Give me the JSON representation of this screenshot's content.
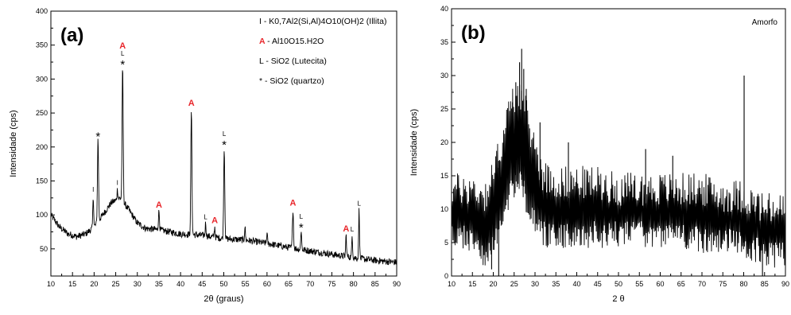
{
  "colors": {
    "ink": "#000000",
    "mineral_a": "#e8262b",
    "background": "#ffffff"
  },
  "chart_data": [
    {
      "panel_label": "(a)",
      "type": "line",
      "xlabel": "2θ (graus)",
      "ylabel": "Intensidade (cps)",
      "xlim": [
        10,
        90
      ],
      "ylim": [
        10,
        400
      ],
      "xticks": [
        10,
        15,
        20,
        25,
        30,
        35,
        40,
        45,
        50,
        55,
        60,
        65,
        70,
        75,
        80,
        85,
        90
      ],
      "yticks": [
        50,
        100,
        150,
        200,
        250,
        300,
        350,
        400
      ],
      "grid": false,
      "legend_position": "top-right",
      "legend": [
        {
          "symbol": "I",
          "text": "- K0,7Al2(Si,Al)4O10(OH)2 (Illita)"
        },
        {
          "symbol": "A",
          "text": "- Al10O15.H2O"
        },
        {
          "symbol": "L",
          "text": "- SiO2 (Lutecita)"
        },
        {
          "symbol": "*",
          "text": "- SiO2 (quartzo)"
        }
      ],
      "baseline": [
        [
          10,
          100
        ],
        [
          12,
          82
        ],
        [
          14,
          72
        ],
        [
          16,
          68
        ],
        [
          18,
          72
        ],
        [
          20,
          82
        ],
        [
          22,
          100
        ],
        [
          24,
          118
        ],
        [
          26,
          125
        ],
        [
          28,
          108
        ],
        [
          30,
          88
        ],
        [
          32,
          80
        ],
        [
          35,
          78
        ],
        [
          40,
          72
        ],
        [
          45,
          70
        ],
        [
          50,
          65
        ],
        [
          55,
          63
        ],
        [
          60,
          58
        ],
        [
          65,
          52
        ],
        [
          70,
          47
        ],
        [
          75,
          42
        ],
        [
          80,
          37
        ],
        [
          85,
          33
        ],
        [
          90,
          30
        ]
      ],
      "peaks": [
        {
          "x": 20.9,
          "y": 212,
          "width": 0.5,
          "markers": [
            "*"
          ]
        },
        {
          "x": 19.8,
          "y": 128,
          "width": 0.4,
          "markers": [
            "I"
          ]
        },
        {
          "x": 25.4,
          "y": 138,
          "width": 0.4,
          "markers": [
            "I"
          ]
        },
        {
          "x": 26.6,
          "y": 318,
          "width": 0.5,
          "markers": [
            "A",
            "L",
            "*"
          ]
        },
        {
          "x": 35.0,
          "y": 105,
          "width": 0.5,
          "markers": [
            "A"
          ]
        },
        {
          "x": 42.5,
          "y": 255,
          "width": 0.5,
          "markers": [
            "A"
          ]
        },
        {
          "x": 45.8,
          "y": 88,
          "width": 0.4,
          "markers": [
            "L"
          ]
        },
        {
          "x": 47.9,
          "y": 82,
          "width": 0.4,
          "markers": [
            "A"
          ]
        },
        {
          "x": 50.1,
          "y": 200,
          "width": 0.5,
          "markers": [
            "L",
            "*"
          ]
        },
        {
          "x": 54.9,
          "y": 82,
          "width": 0.4,
          "markers": []
        },
        {
          "x": 60.0,
          "y": 72,
          "width": 0.4,
          "markers": []
        },
        {
          "x": 66.0,
          "y": 108,
          "width": 0.5,
          "markers": [
            "A"
          ]
        },
        {
          "x": 67.9,
          "y": 78,
          "width": 0.4,
          "markers": [
            "L",
            "*"
          ]
        },
        {
          "x": 78.3,
          "y": 70,
          "width": 0.4,
          "markers": [
            "A"
          ]
        },
        {
          "x": 79.7,
          "y": 70,
          "width": 0.4,
          "markers": [
            "L"
          ]
        },
        {
          "x": 81.3,
          "y": 108,
          "width": 0.4,
          "markers": [
            "L"
          ]
        }
      ]
    },
    {
      "panel_label": "(b)",
      "type": "line",
      "annotation": "Amorfo",
      "xlabel": "2 θ",
      "ylabel": "Intensidade (cps)",
      "xlim": [
        10,
        90
      ],
      "ylim": [
        0,
        40
      ],
      "xticks": [
        10,
        15,
        20,
        25,
        30,
        35,
        40,
        45,
        50,
        55,
        60,
        65,
        70,
        75,
        80,
        85,
        90
      ],
      "yticks": [
        0,
        5,
        10,
        15,
        20,
        25,
        30,
        35,
        40
      ],
      "grid": false,
      "envelope": [
        [
          10,
          12,
          7
        ],
        [
          15,
          12,
          6
        ],
        [
          18,
          11,
          4
        ],
        [
          20,
          14,
          5
        ],
        [
          22,
          19,
          9
        ],
        [
          24,
          24,
          13
        ],
        [
          26,
          27,
          16
        ],
        [
          28,
          23,
          12
        ],
        [
          30,
          18,
          9
        ],
        [
          32,
          14,
          7
        ],
        [
          35,
          13,
          7
        ],
        [
          40,
          13,
          7
        ],
        [
          45,
          13,
          7
        ],
        [
          50,
          12,
          7
        ],
        [
          55,
          12,
          7
        ],
        [
          60,
          12,
          7
        ],
        [
          65,
          12,
          7
        ],
        [
          70,
          12,
          6
        ],
        [
          75,
          11,
          6
        ],
        [
          78,
          11,
          6
        ],
        [
          80,
          11,
          5
        ],
        [
          82,
          10,
          5
        ],
        [
          85,
          9,
          4
        ],
        [
          90,
          9,
          4
        ]
      ],
      "spikes": [
        [
          26.8,
          34
        ],
        [
          26.3,
          32
        ],
        [
          27.3,
          31
        ],
        [
          25.4,
          29
        ],
        [
          27.9,
          28
        ],
        [
          24.6,
          26
        ],
        [
          80.1,
          30
        ],
        [
          31.2,
          23
        ],
        [
          38.0,
          20
        ],
        [
          56.5,
          19
        ],
        [
          63.0,
          18
        ],
        [
          21.3,
          0
        ],
        [
          19.6,
          1
        ],
        [
          84.5,
          0
        ]
      ]
    }
  ]
}
